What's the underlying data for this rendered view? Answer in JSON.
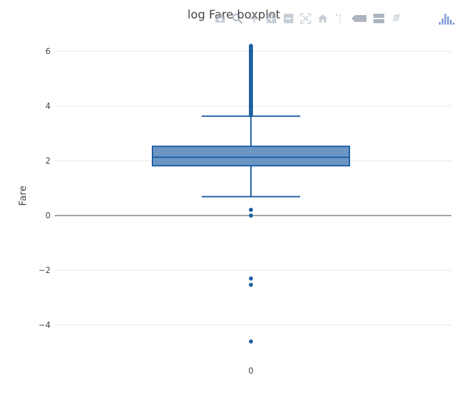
{
  "chart_data": {
    "type": "box",
    "title": "log Fare boxplot",
    "ylabel": "Fare",
    "xlabel": "",
    "categories": [
      "0"
    ],
    "ylim": [
      -5.3,
      6.6
    ],
    "yticks": [
      -4,
      -2,
      0,
      2,
      4,
      6
    ],
    "ytick_labels": [
      "−4",
      "−2",
      "0",
      "2",
      "4",
      "6"
    ],
    "grid": true,
    "box": {
      "category": "0",
      "lower_fence": 0.69,
      "q1": 1.82,
      "median": 2.13,
      "q3": 2.53,
      "upper_fence": 3.63,
      "outliers_low": [
        0.21,
        0.0,
        -2.3,
        -2.53,
        -4.6
      ],
      "outliers_high": [
        3.66,
        3.7,
        3.74,
        3.78,
        3.82,
        3.86,
        3.9,
        3.94,
        3.98,
        4.02,
        4.06,
        4.1,
        4.14,
        4.18,
        4.22,
        4.26,
        4.3,
        4.34,
        4.38,
        4.42,
        4.46,
        4.5,
        4.54,
        4.58,
        4.62,
        4.66,
        4.7,
        4.74,
        4.78,
        4.82,
        4.86,
        4.9,
        4.94,
        4.98,
        5.02,
        5.06,
        5.1,
        5.14,
        5.18,
        5.22,
        5.26,
        5.3,
        5.34,
        5.38,
        5.42,
        5.46,
        5.5,
        5.54,
        5.58,
        5.62,
        5.66,
        5.7,
        5.74,
        5.78,
        5.82,
        5.86,
        5.9,
        5.94,
        5.98,
        6.02,
        6.06,
        6.1,
        6.14,
        6.18,
        6.2
      ]
    },
    "colors": {
      "box_fill": "#6b96c4",
      "box_line": "#1f5fa3",
      "grid": "#e6e6e6",
      "zero_line": "#444444",
      "text": "#444444"
    }
  },
  "toolbar": {
    "buttons": [
      {
        "name": "download-plot-button",
        "icon": "camera-icon"
      },
      {
        "name": "zoom-button",
        "icon": "magnifier-icon"
      },
      {
        "name": "pan-button",
        "icon": "cross-arrows-icon"
      },
      {
        "name": "zoom-in-button",
        "icon": "plus-square-icon"
      },
      {
        "name": "zoom-out-button",
        "icon": "minus-square-icon"
      },
      {
        "name": "autoscale-button",
        "icon": "autoscale-icon"
      },
      {
        "name": "reset-axes-button",
        "icon": "home-icon"
      },
      {
        "name": "spike-lines-button",
        "icon": "spike-icon"
      },
      {
        "name": "hover-closest-button",
        "icon": "tag-icon"
      },
      {
        "name": "hover-compare-button",
        "icon": "double-tag-icon"
      },
      {
        "name": "edit-chart-button",
        "icon": "pencil-icon"
      }
    ],
    "logo_icon": "plotly-logo-icon"
  }
}
